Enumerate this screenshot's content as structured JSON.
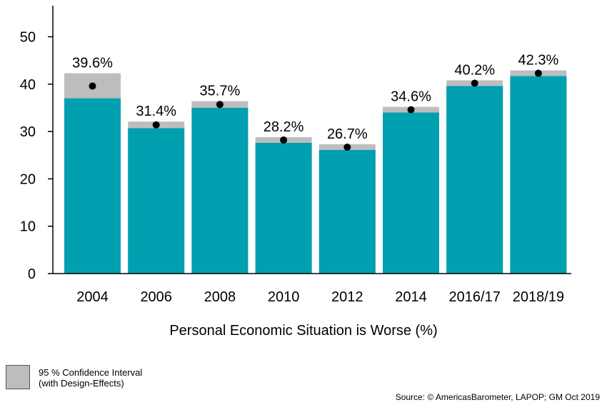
{
  "chart_data": {
    "type": "bar",
    "categories": [
      "2004",
      "2006",
      "2008",
      "2010",
      "2012",
      "2014",
      "2016/17",
      "2018/19"
    ],
    "values": [
      39.6,
      31.4,
      35.7,
      28.2,
      26.7,
      34.6,
      40.2,
      42.3
    ],
    "value_labels": [
      "39.6%",
      "31.4%",
      "35.7%",
      "28.2%",
      "26.7%",
      "34.6%",
      "40.2%",
      "42.3%"
    ],
    "ci_lower": [
      37.0,
      30.7,
      35.0,
      27.6,
      26.1,
      34.0,
      39.6,
      41.7
    ],
    "ci_upper": [
      42.3,
      32.1,
      36.4,
      28.8,
      27.3,
      35.2,
      40.8,
      42.9
    ],
    "ylim": [
      0,
      55
    ],
    "yticks": [
      0,
      10,
      20,
      30,
      40,
      50
    ],
    "xlabel": "Personal Economic Situation is Worse (%)",
    "ylabel": "",
    "grid": false,
    "legend": {
      "label_line1": "95 % Confidence Interval",
      "label_line2": "(with Design-Effects)",
      "placement": "bottom-left"
    },
    "source": "Source: © AmericasBarometer, LAPOP; GM Oct 2019",
    "colors": {
      "bar": "#00A0B0",
      "ci": "#BDBDBD",
      "point": "#000000",
      "axis": "#000000"
    }
  }
}
